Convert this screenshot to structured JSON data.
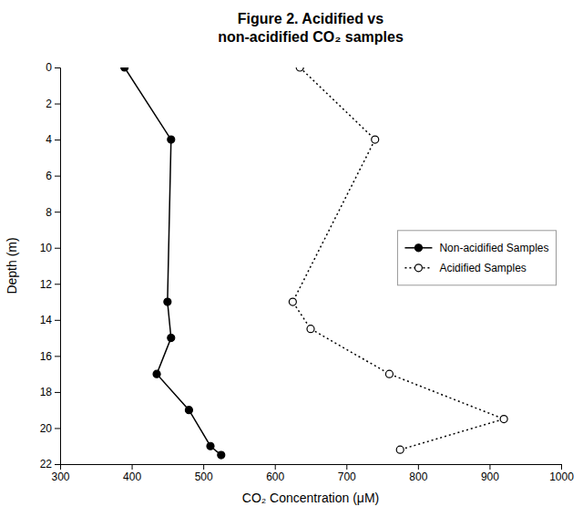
{
  "chart_data": {
    "type": "line",
    "title": "Figure 2.  Acidified vs\nnon-acidified CO₂ samples",
    "xlabel": "CO₂ Concentration (μM)",
    "ylabel": "Depth (m)",
    "xlim": [
      300,
      1000
    ],
    "ylim": [
      22,
      0
    ],
    "xticks": [
      300,
      400,
      500,
      600,
      700,
      800,
      900,
      1000
    ],
    "yticks": [
      0,
      2,
      4,
      6,
      8,
      10,
      12,
      14,
      16,
      18,
      20,
      22
    ],
    "grid": false,
    "legend": "center right",
    "series": [
      {
        "name": "Non-acidified Samples",
        "color": "#000000",
        "line_style": "solid",
        "marker": "circle",
        "x": [
          390,
          455,
          450,
          455,
          435,
          480,
          510,
          525
        ],
        "values": [
          0,
          4,
          13,
          15,
          17,
          19,
          21,
          21.5
        ]
      },
      {
        "name": "Acidified Samples",
        "color": "#000000",
        "line_style": "dotted",
        "marker": "open-circle",
        "x": [
          635,
          740,
          625,
          650,
          760,
          920,
          775
        ],
        "values": [
          0,
          4,
          13,
          14.5,
          17,
          19.5,
          21.2
        ]
      }
    ]
  }
}
